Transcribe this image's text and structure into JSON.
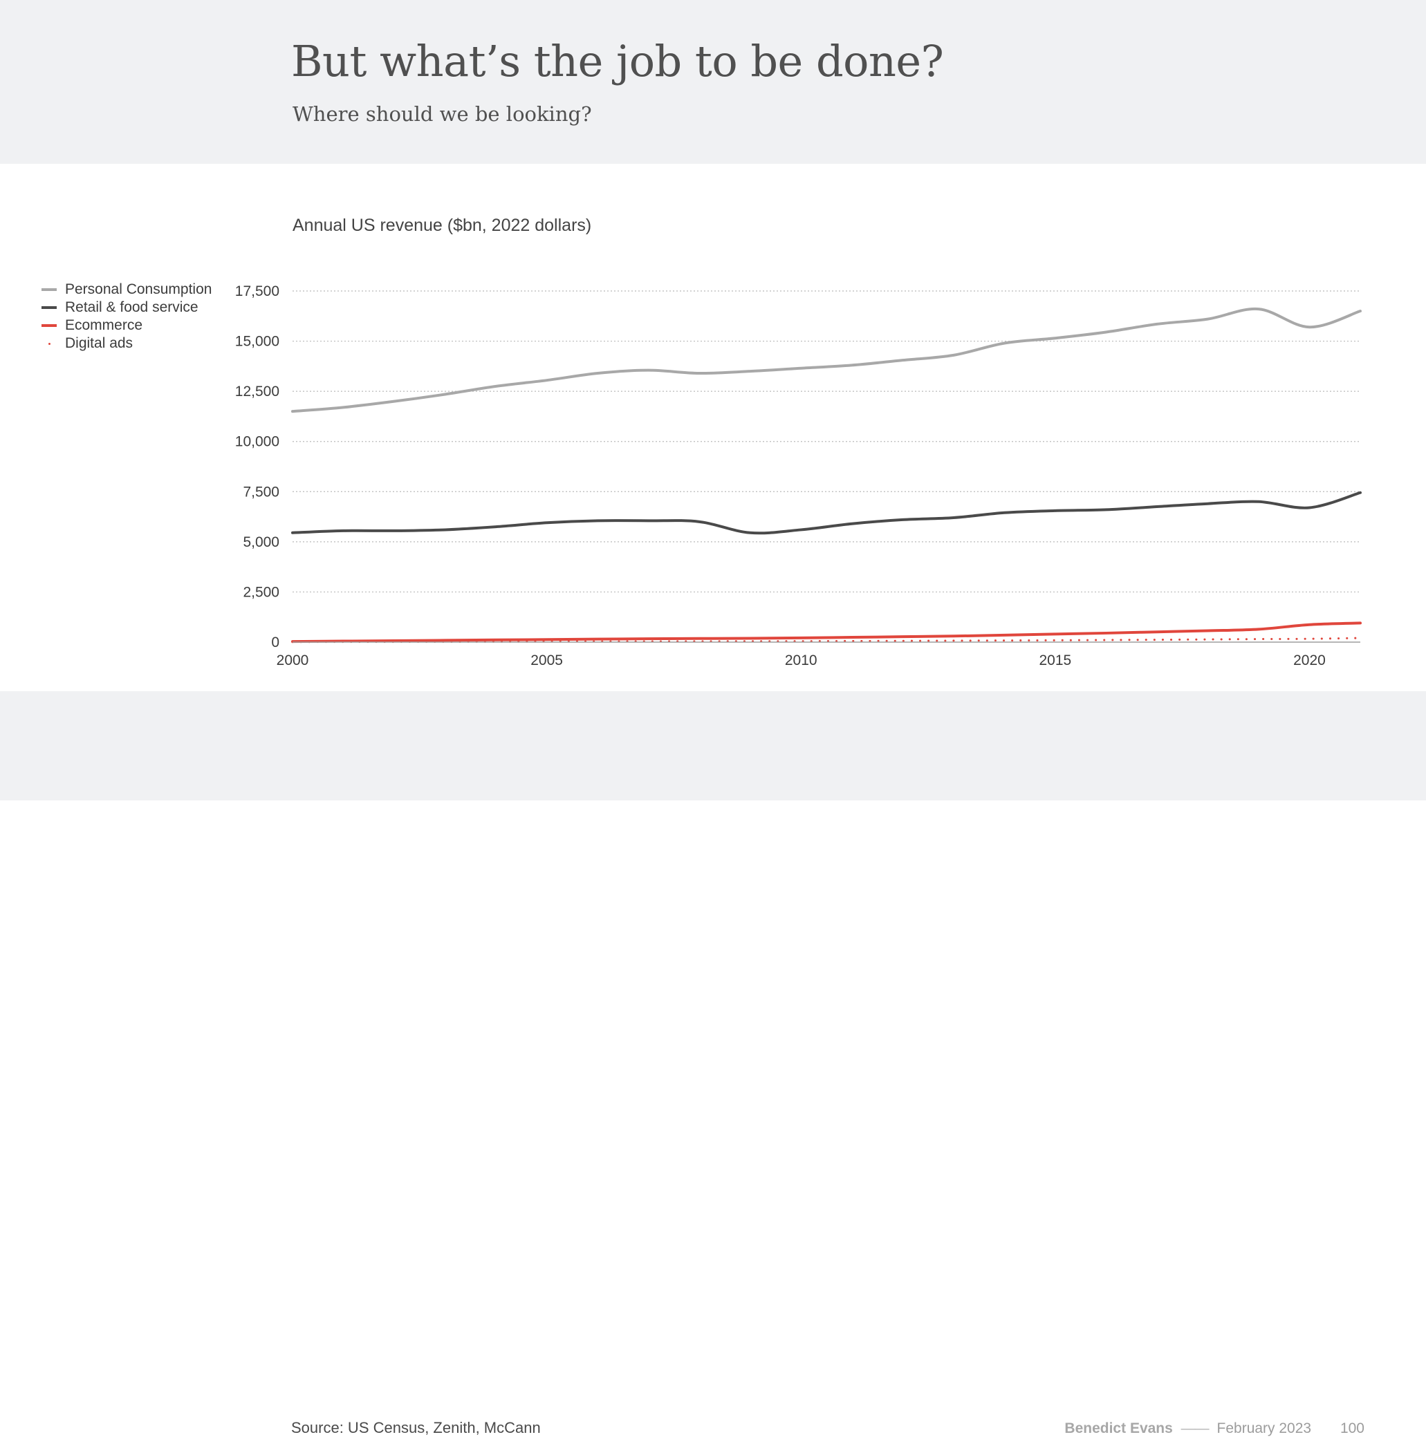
{
  "header": {
    "title": "But what’s the job to be done?",
    "subtitle": "Where should we be looking?"
  },
  "footer": {
    "source": "Source: US Census, Zenith, McCann",
    "author": "Benedict Evans",
    "separator": "——",
    "date": "February 2023",
    "page_number": "100"
  },
  "colors": {
    "background": "#ffffff",
    "band": "#f0f1f3",
    "personal_consumption": "#a8a8a8",
    "retail": "#4a4a4a",
    "ecommerce": "#e0463c",
    "digital_ads": "#e0463c",
    "grid": "#bdbdbd"
  },
  "chart_data": {
    "type": "line",
    "title": "Annual US revenue ($bn, 2022 dollars)",
    "xlabel": "",
    "ylabel": "",
    "x": [
      2000,
      2001,
      2002,
      2003,
      2004,
      2005,
      2006,
      2007,
      2008,
      2009,
      2010,
      2011,
      2012,
      2013,
      2014,
      2015,
      2016,
      2017,
      2018,
      2019,
      2020,
      2021
    ],
    "xlim": [
      2000,
      2021
    ],
    "ylim": [
      0,
      17500
    ],
    "xticks": [
      "2000",
      "2005",
      "2010",
      "2015",
      "2020"
    ],
    "xtick_values": [
      2000,
      2005,
      2010,
      2015,
      2020
    ],
    "yticks": [
      "0",
      "2,500",
      "5,000",
      "7,500",
      "10,000",
      "12,500",
      "15,000",
      "17,500"
    ],
    "ytick_values": [
      0,
      2500,
      5000,
      7500,
      10000,
      12500,
      15000,
      17500
    ],
    "grid": true,
    "legend_position": "left",
    "series": [
      {
        "name": "Personal Consumption",
        "style": "solid",
        "color": "#a8a8a8",
        "values": [
          11500,
          11700,
          12000,
          12350,
          12750,
          13050,
          13400,
          13550,
          13400,
          13500,
          13650,
          13800,
          14050,
          14300,
          14900,
          15150,
          15450,
          15850,
          16100,
          16600,
          15700,
          16500
        ]
      },
      {
        "name": "Retail & food service",
        "style": "solid",
        "color": "#4a4a4a",
        "values": [
          5450,
          5550,
          5550,
          5600,
          5750,
          5950,
          6050,
          6050,
          6000,
          5450,
          5600,
          5900,
          6100,
          6200,
          6450,
          6550,
          6600,
          6750,
          6900,
          7000,
          6700,
          7450
        ]
      },
      {
        "name": "Ecommerce",
        "style": "solid",
        "color": "#e0463c",
        "values": [
          30,
          50,
          70,
          90,
          110,
          130,
          150,
          170,
          180,
          190,
          210,
          240,
          270,
          300,
          350,
          400,
          450,
          510,
          570,
          640,
          870,
          950
        ]
      },
      {
        "name": "Digital ads",
        "style": "dotted",
        "color": "#e0463c",
        "values": [
          10,
          12,
          15,
          18,
          22,
          26,
          30,
          35,
          40,
          42,
          48,
          55,
          62,
          72,
          82,
          92,
          105,
          118,
          135,
          152,
          165,
          205
        ]
      }
    ]
  }
}
